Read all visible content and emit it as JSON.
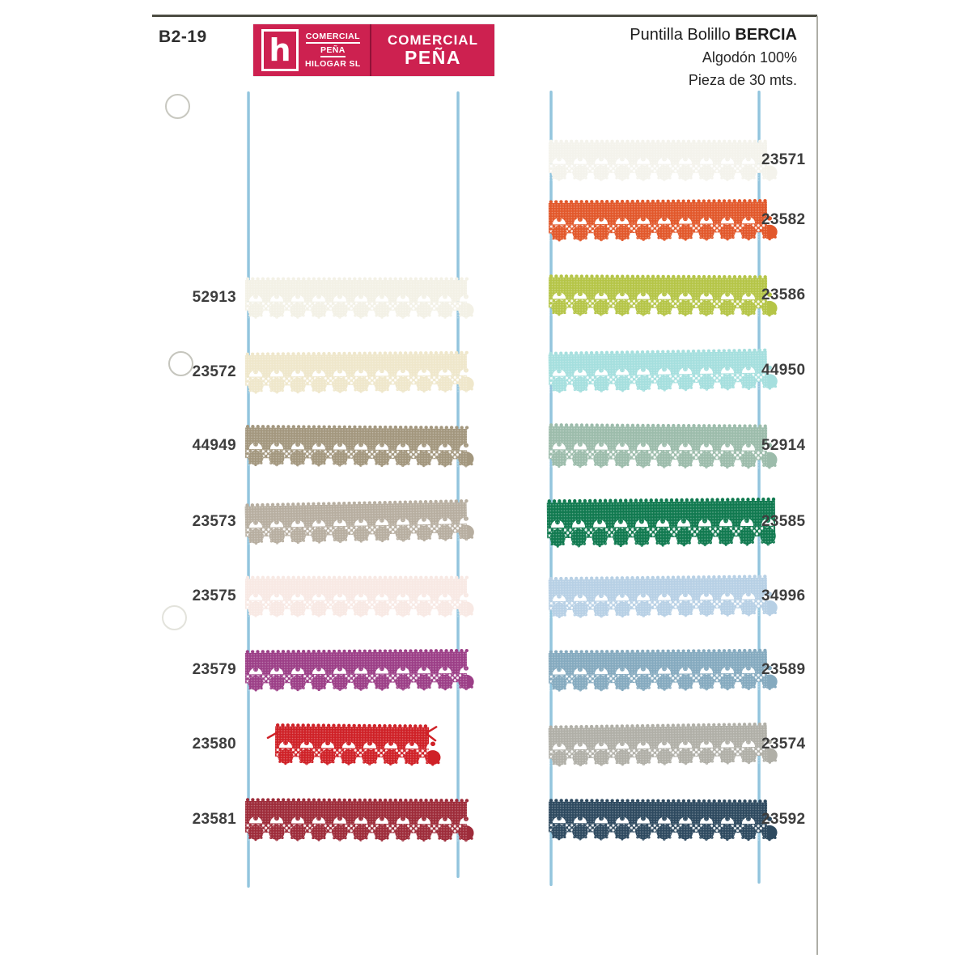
{
  "page": {
    "code": "B2-19",
    "title_prefix": "Puntilla Bolillo",
    "title_name": "BERCIA",
    "subtitle1": "Algodón 100%",
    "subtitle2": "Pieza de 30 mts."
  },
  "logo": {
    "letter": "h",
    "small_lines": [
      "COMERCIAL",
      "PEÑA",
      "HILOGAR SL"
    ],
    "large_line1": "COMERCIAL",
    "large_line2": "PEÑA",
    "banner_color": "#cd2150"
  },
  "thread_color": "#84bcd8",
  "label_color": "#3d3d3d",
  "columns": {
    "left": [
      {
        "ref": "52913",
        "color": "#f3f1e6"
      },
      {
        "ref": "23572",
        "color": "#efe7cb"
      },
      {
        "ref": "44949",
        "color": "#a3977e"
      },
      {
        "ref": "23573",
        "color": "#b7aea0"
      },
      {
        "ref": "23575",
        "color": "#f8e9e4"
      },
      {
        "ref": "23579",
        "color": "#9c3f87"
      },
      {
        "ref": "23580",
        "color": "#cf2127"
      },
      {
        "ref": "23581",
        "color": "#9e2c3a"
      }
    ],
    "right": [
      {
        "ref": "23571",
        "color": "#f4f3ec"
      },
      {
        "ref": "23582",
        "color": "#e2582b"
      },
      {
        "ref": "23586",
        "color": "#b5c547"
      },
      {
        "ref": "44950",
        "color": "#a5dfde"
      },
      {
        "ref": "52914",
        "color": "#9cbcab"
      },
      {
        "ref": "23585",
        "color": "#117a50"
      },
      {
        "ref": "34996",
        "color": "#b7d0e5"
      },
      {
        "ref": "23589",
        "color": "#85aabf"
      },
      {
        "ref": "23574",
        "color": "#b0afa7"
      },
      {
        "ref": "23592",
        "color": "#2e4a60"
      }
    ]
  }
}
